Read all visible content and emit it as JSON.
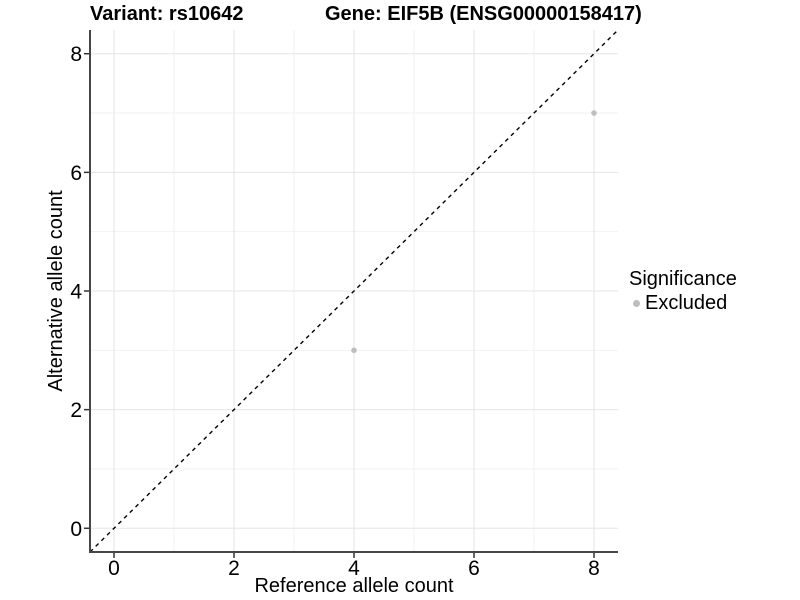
{
  "chart_data": {
    "type": "scatter",
    "title_variant": "Variant: rs10642",
    "title_gene": "Gene: EIF5B (ENSG00000158417)",
    "xlabel": "Reference allele count",
    "ylabel": "Alternative allele count",
    "xlim": [
      -0.4,
      8.4
    ],
    "ylim": [
      -0.4,
      8.4
    ],
    "xticks": [
      0,
      2,
      4,
      6,
      8
    ],
    "yticks": [
      0,
      2,
      4,
      6,
      8
    ],
    "xminor": [
      1,
      3,
      5,
      7
    ],
    "yminor": [
      1,
      3,
      5,
      7
    ],
    "grid": "major-and-minor",
    "legend_position": "right",
    "series": [
      {
        "name": "Excluded",
        "color": "#bebebe",
        "points": [
          {
            "x": 4,
            "y": 3
          },
          {
            "x": 8,
            "y": 7
          }
        ]
      }
    ],
    "reference_line": {
      "type": "identity",
      "slope": 1,
      "intercept": 0,
      "style": "dashed",
      "color": "#000000"
    }
  },
  "legend": {
    "title": "Significance",
    "items": [
      {
        "label": "Excluded",
        "color": "#bebebe",
        "marker": "circle"
      }
    ]
  },
  "colors": {
    "background": "#ffffff",
    "panel_background": "#ffffff",
    "axis_line": "#464646",
    "tick_mark": "#333333",
    "text": "#000000",
    "grid_major": "#e5e5e5",
    "grid_minor": "#f2f2f2",
    "point": "#bebebe"
  }
}
